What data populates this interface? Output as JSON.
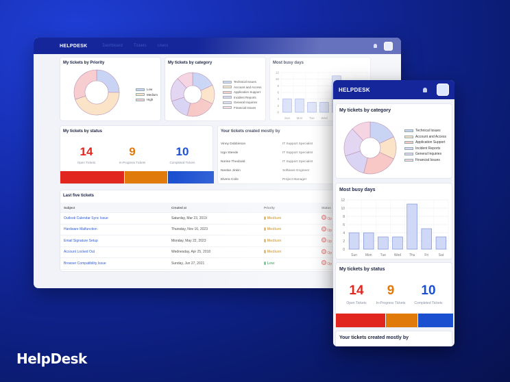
{
  "brand": "HelpDesk",
  "app": {
    "logo": "HELPDESK",
    "nav": [
      "Dashboard",
      "Tickets",
      "Users"
    ]
  },
  "icons": {
    "bell": "bell-icon",
    "avatar": "avatar"
  },
  "colors": {
    "nav": "#14269a",
    "open": "#e0261e",
    "progress": "#e07a0a",
    "completed": "#1a4fd0",
    "link": "#2f5bd8"
  },
  "priority": {
    "title": "My tickets by Priority",
    "legend": [
      "Low",
      "Medium",
      "High"
    ]
  },
  "category": {
    "title": "My tickets by category",
    "legend": [
      "Technical Issues",
      "Account and Access",
      "Application Support",
      "Incident Reports",
      "General Inquiries",
      "Financial Issues"
    ]
  },
  "busy": {
    "title": "Most busy days"
  },
  "status": {
    "title": "My tickets by status",
    "open": {
      "count": "14",
      "label": "Open Tickets"
    },
    "progress": {
      "count": "9",
      "label": "In-Progress Tickets"
    },
    "completed": {
      "count": "10",
      "label": "Completed Tickets"
    }
  },
  "created": {
    "title": "Your tickets created mostly by",
    "rows": [
      {
        "name": "Vinny Dobbinson",
        "role": "IT Support Specialist"
      },
      {
        "name": "Ugo Steede",
        "role": "IT Support Specialist"
      },
      {
        "name": "Norine Theobald",
        "role": "IT Support Specialist"
      },
      {
        "name": "Neelan Jinkin",
        "role": "Software Engineer"
      },
      {
        "name": "Elvera Coile",
        "role": "Project Manager"
      }
    ]
  },
  "last5": {
    "title": "Last five tickets",
    "headers": [
      "Subject",
      "Created at",
      "Priority",
      "Status"
    ],
    "rows": [
      {
        "subject": "Outlook Calendar Sync Issue",
        "created": "Saturday, Mar 23, 2019",
        "priority": "Medium",
        "status": "Op"
      },
      {
        "subject": "Hardware Malfunction",
        "created": "Thursday, Nov 16, 2023",
        "priority": "Medium",
        "status": "Op"
      },
      {
        "subject": "Email Signature Setup",
        "created": "Monday, May 22, 2023",
        "priority": "Medium",
        "status": "Op"
      },
      {
        "subject": "Account Locked Out",
        "created": "Wednesday, Apr 25, 2018",
        "priority": "Medium",
        "status": "Op"
      },
      {
        "subject": "Browser Compatibility Issue",
        "created": "Sunday, Jun 27, 2021",
        "priority": "Low",
        "status": "Op"
      }
    ]
  },
  "chart_data": [
    {
      "type": "pie",
      "title": "My tickets by Priority",
      "categories": [
        "Low",
        "Medium",
        "High"
      ],
      "values": [
        25,
        45,
        30
      ],
      "colors": [
        "#c9d4f5",
        "#fbe3c8",
        "#f7cdd0"
      ]
    },
    {
      "type": "pie",
      "title": "My tickets by category",
      "categories": [
        "Technical Issues",
        "Account and Access",
        "Application Support",
        "Incident Reports",
        "General Inquiries",
        "Financial Issues"
      ],
      "values": [
        18,
        14,
        22,
        16,
        18,
        12
      ],
      "colors": [
        "#c9d4f5",
        "#fbe3c8",
        "#f7c8c5",
        "#d9d4f3",
        "#e2d6f2",
        "#f5d5e1"
      ]
    },
    {
      "type": "bar",
      "title": "Most busy days",
      "categories": [
        "Sun",
        "Mon",
        "Tue",
        "Wed",
        "Thu",
        "Fri",
        "Sat"
      ],
      "values": [
        4,
        4,
        3,
        3,
        11,
        5,
        3
      ],
      "ylim": [
        0,
        12
      ],
      "yticks": [
        0,
        2,
        4,
        6,
        8,
        10,
        12
      ]
    }
  ]
}
